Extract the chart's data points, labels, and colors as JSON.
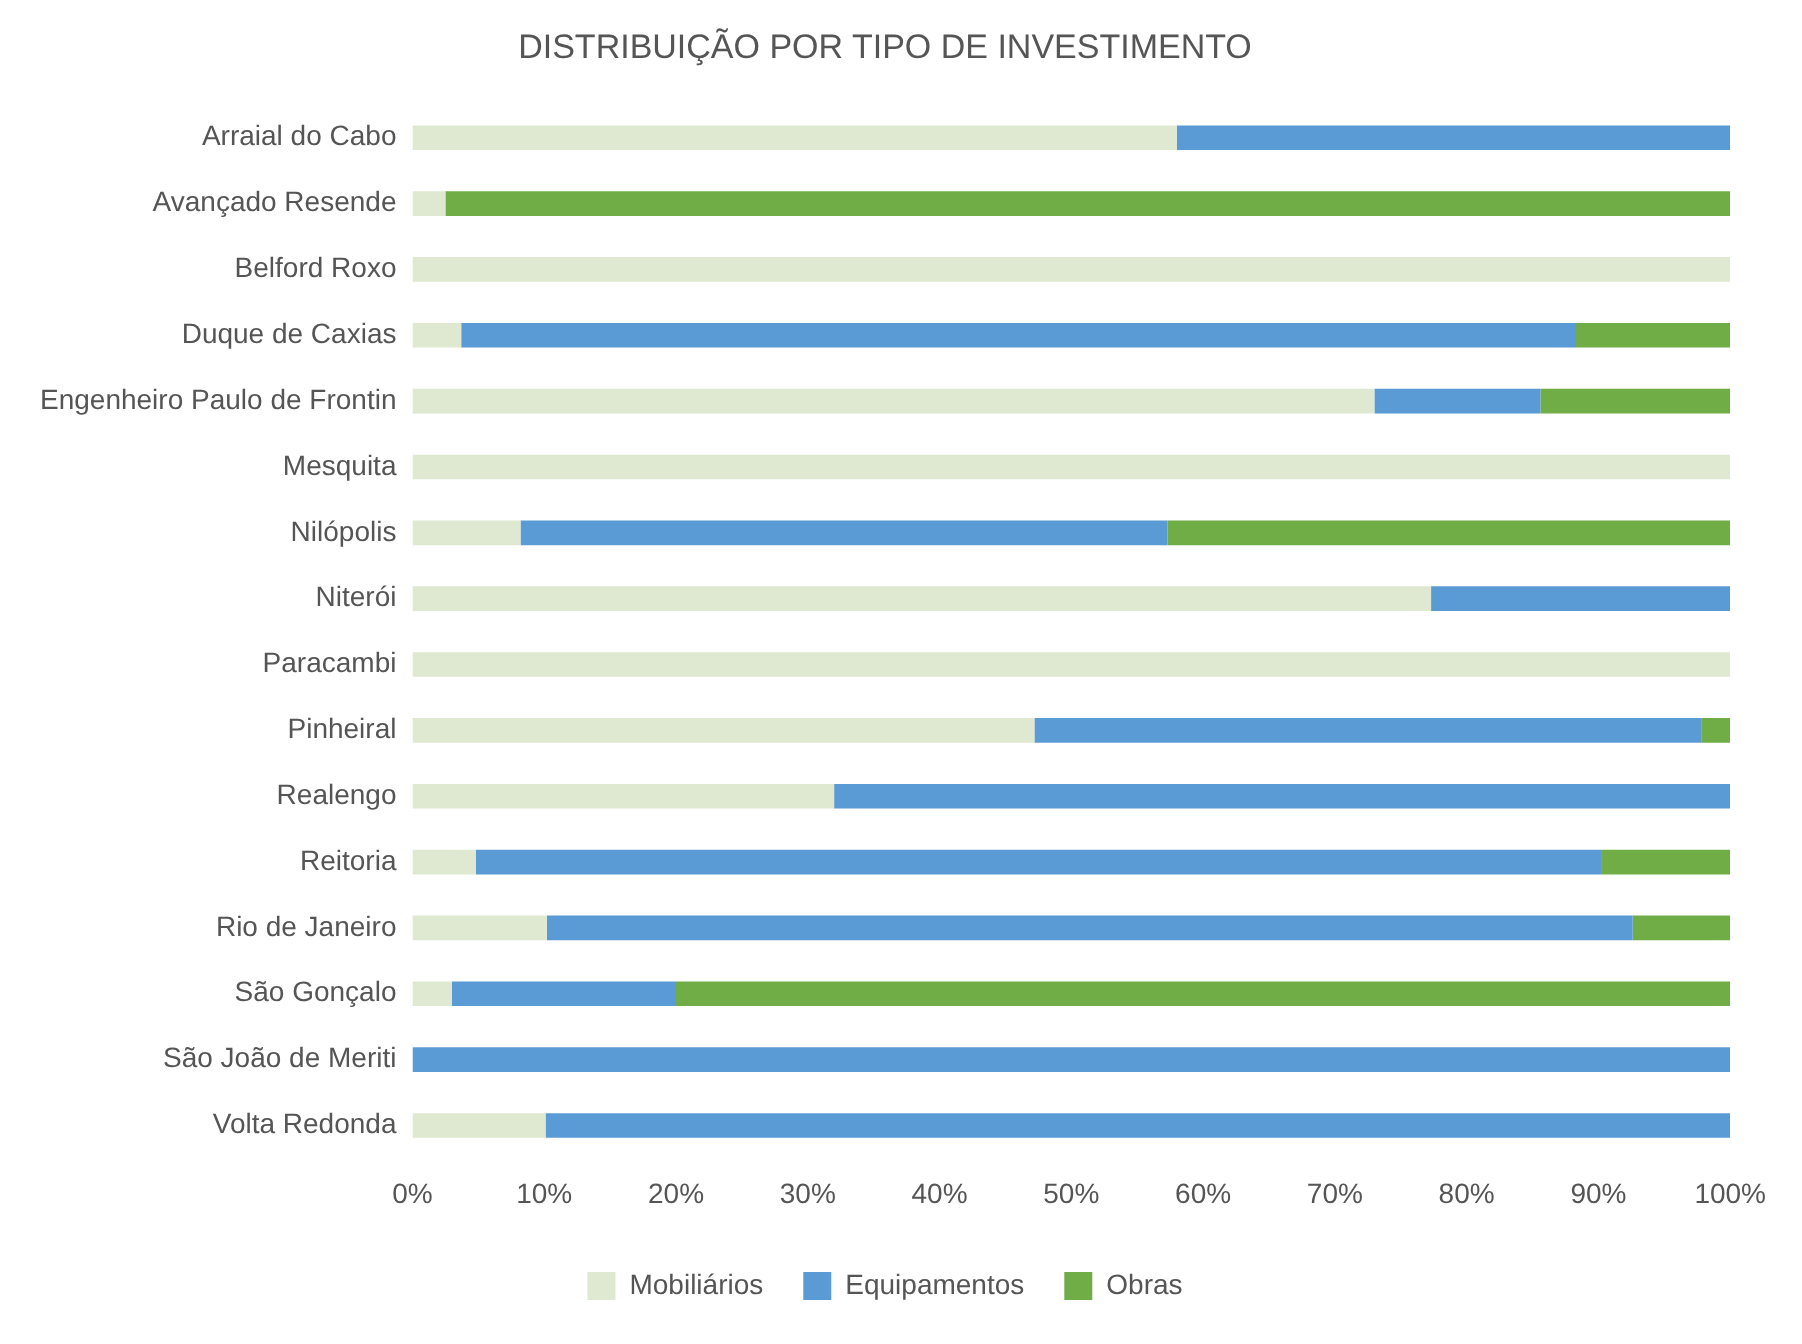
{
  "chart_data": {
    "type": "bar",
    "title": "DISTRIBUIÇÃO POR TIPO DE INVESTIMENTO",
    "orientation": "horizontal",
    "stacked": true,
    "categories": [
      "Arraial do Cabo",
      "Avançado Resende",
      "Belford Roxo",
      "Duque de Caxias",
      "Engenheiro Paulo de Frontin",
      "Mesquita",
      "Nilópolis",
      "Niterói",
      "Paracambi",
      "Pinheiral",
      "Realengo",
      "Reitoria",
      "Rio de Janeiro",
      "São Gonçalo",
      "São João de Meriti",
      "Volta Redonda"
    ],
    "series": [
      {
        "name": "Mobiliários",
        "color": "#dfe9d1",
        "values": [
          58,
          2.5,
          100,
          3.7,
          73,
          100,
          8.2,
          77.3,
          100,
          47.2,
          32,
          4.8,
          10.2,
          3,
          0,
          10.1
        ]
      },
      {
        "name": "Equipamentos",
        "color": "#5b9bd5",
        "values": [
          42,
          0,
          0,
          84.6,
          12.6,
          0,
          49.1,
          22.7,
          0,
          50.6,
          68,
          85.4,
          82.4,
          17,
          100,
          89.9
        ]
      },
      {
        "name": "Obras",
        "color": "#70ad47",
        "values": [
          0,
          97.5,
          0,
          11.7,
          14.4,
          0,
          42.7,
          0,
          0,
          2.2,
          0,
          9.8,
          7.4,
          80,
          0,
          0
        ]
      }
    ],
    "xlim": [
      0,
      100
    ],
    "xticks": [
      {
        "value": 0,
        "label": "0%"
      },
      {
        "value": 10,
        "label": "10%"
      },
      {
        "value": 20,
        "label": "20%"
      },
      {
        "value": 30,
        "label": "30%"
      },
      {
        "value": 40,
        "label": "40%"
      },
      {
        "value": 50,
        "label": "50%"
      },
      {
        "value": 60,
        "label": "60%"
      },
      {
        "value": 70,
        "label": "70%"
      },
      {
        "value": 80,
        "label": "80%"
      },
      {
        "value": 90,
        "label": "90%"
      },
      {
        "value": 100,
        "label": "100%"
      }
    ],
    "grid": false,
    "legend": "bottom"
  }
}
